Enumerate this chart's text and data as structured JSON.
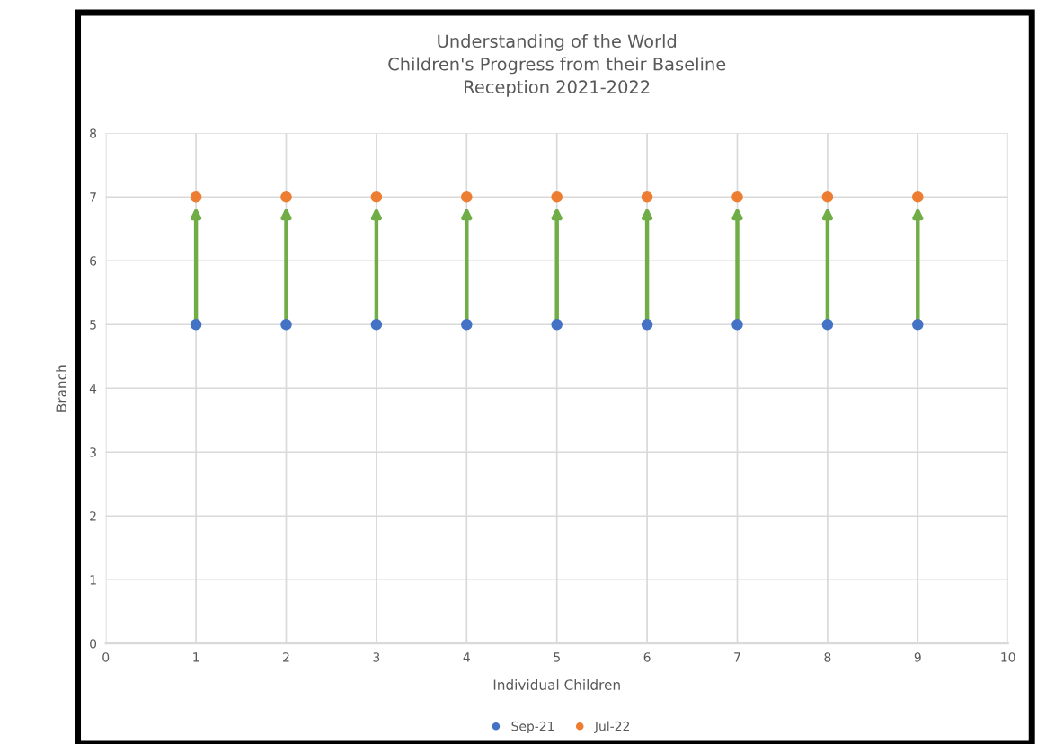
{
  "chart_data": {
    "type": "scatter",
    "title": "Understanding of the World\nChildren's Progress from their Baseline\nReception 2021-2022",
    "xlabel": "Individual Children",
    "ylabel": "Branch",
    "x": [
      1,
      2,
      3,
      4,
      5,
      6,
      7,
      8,
      9
    ],
    "series": [
      {
        "name": "Sep-21",
        "color": "#4472c4",
        "values": [
          5,
          5,
          5,
          5,
          5,
          5,
          5,
          5,
          5
        ]
      },
      {
        "name": "Jul-22",
        "color": "#ed7d31",
        "values": [
          7,
          7,
          7,
          7,
          7,
          7,
          7,
          7,
          7
        ]
      }
    ],
    "xlim": [
      0,
      10
    ],
    "xticks": [
      0,
      1,
      2,
      3,
      4,
      5,
      6,
      7,
      8,
      9,
      10
    ],
    "ylim": [
      0,
      8
    ],
    "yticks": [
      0,
      1,
      2,
      3,
      4,
      5,
      6,
      7,
      8
    ],
    "grid": true,
    "legend": "bottom",
    "marker": "circle"
  }
}
